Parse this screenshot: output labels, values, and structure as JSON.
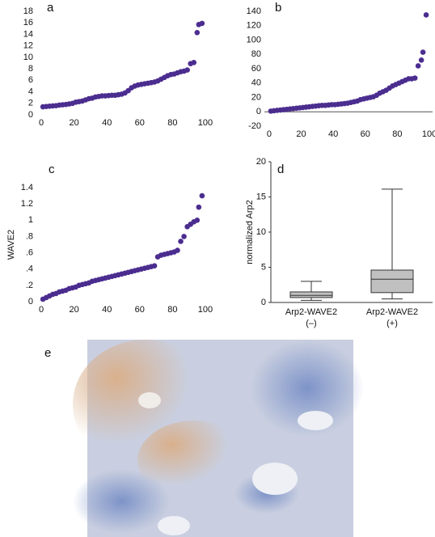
{
  "chart_data": [
    {
      "type": "scatter",
      "label": "a",
      "color": "#4b2d8f",
      "xlim": [
        -3,
        102
      ],
      "xticks": [
        0,
        20,
        40,
        60,
        80,
        100
      ],
      "ylim": [
        0,
        18
      ],
      "yticks": [
        0,
        2,
        4,
        6,
        8,
        10,
        12,
        14,
        16,
        18
      ],
      "x": [
        1,
        3,
        5,
        7,
        9,
        11,
        13,
        15,
        17,
        19,
        21,
        23,
        25,
        27,
        29,
        31,
        33,
        35,
        37,
        39,
        41,
        43,
        45,
        47,
        49,
        51,
        53,
        55,
        57,
        59,
        61,
        63,
        65,
        67,
        69,
        71,
        73,
        75,
        77,
        79,
        81,
        83,
        85,
        87,
        89,
        91,
        93,
        95,
        96,
        98
      ],
      "values": [
        1.4,
        1.45,
        1.5,
        1.55,
        1.6,
        1.7,
        1.75,
        1.8,
        1.9,
        2.0,
        2.2,
        2.3,
        2.4,
        2.6,
        2.8,
        2.9,
        3.1,
        3.2,
        3.3,
        3.3,
        3.35,
        3.4,
        3.4,
        3.5,
        3.6,
        3.8,
        4.2,
        4.7,
        5.0,
        5.2,
        5.3,
        5.4,
        5.5,
        5.6,
        5.7,
        5.9,
        6.2,
        6.5,
        6.8,
        7.0,
        7.1,
        7.3,
        7.5,
        7.6,
        7.8,
        8.9,
        9.1,
        14.3,
        15.7,
        15.9
      ]
    },
    {
      "type": "scatter",
      "label": "b",
      "color": "#4b2d8f",
      "xlim": [
        -3,
        102
      ],
      "xticks": [
        0,
        20,
        40,
        60,
        80,
        100
      ],
      "ylim": [
        -20,
        140
      ],
      "yticks": [
        -20,
        0,
        20,
        40,
        60,
        80,
        100,
        120,
        140
      ],
      "reference_line": 0,
      "x": [
        1,
        3,
        5,
        7,
        9,
        11,
        13,
        15,
        17,
        19,
        21,
        23,
        25,
        27,
        29,
        31,
        33,
        35,
        37,
        39,
        41,
        43,
        45,
        47,
        49,
        51,
        53,
        55,
        57,
        59,
        61,
        63,
        65,
        67,
        69,
        71,
        73,
        75,
        77,
        79,
        81,
        83,
        85,
        87,
        89,
        91,
        93,
        95,
        96,
        98
      ],
      "values": [
        1,
        1.5,
        2,
        2.5,
        3,
        3.5,
        4,
        4.5,
        5,
        5.5,
        6,
        6.5,
        7,
        7.5,
        8,
        8.5,
        9,
        9,
        9.5,
        10,
        10,
        10.5,
        11,
        11.5,
        12,
        13,
        14,
        15,
        17,
        18,
        19,
        20,
        21,
        23,
        26,
        28,
        30,
        33,
        36,
        38,
        40,
        42,
        44,
        46,
        46,
        47,
        64,
        72,
        83,
        135
      ]
    },
    {
      "type": "scatter",
      "label": "c",
      "y_label": "WAVE2",
      "color": "#4b2d8f",
      "xlim": [
        -3,
        102
      ],
      "xticks": [
        0,
        20,
        40,
        60,
        80,
        100
      ],
      "ylim": [
        0,
        1.4
      ],
      "yticks": [
        0,
        {
          "value": 0.2,
          "label": ".2"
        },
        {
          "value": 0.4,
          "label": ".4"
        },
        {
          "value": 0.6,
          "label": ".6"
        },
        {
          "value": 0.8,
          "label": ".8"
        },
        1,
        1.2,
        1.4
      ],
      "x": [
        1,
        3,
        5,
        7,
        9,
        11,
        13,
        15,
        17,
        19,
        21,
        23,
        25,
        27,
        29,
        31,
        33,
        35,
        37,
        39,
        41,
        43,
        45,
        47,
        49,
        51,
        53,
        55,
        57,
        59,
        61,
        63,
        65,
        67,
        69,
        71,
        73,
        75,
        77,
        79,
        81,
        83,
        85,
        87,
        89,
        91,
        93,
        95,
        96,
        98
      ],
      "values": [
        0.03,
        0.05,
        0.07,
        0.09,
        0.1,
        0.12,
        0.13,
        0.14,
        0.16,
        0.17,
        0.18,
        0.2,
        0.21,
        0.22,
        0.23,
        0.25,
        0.26,
        0.27,
        0.28,
        0.29,
        0.3,
        0.31,
        0.32,
        0.33,
        0.34,
        0.35,
        0.36,
        0.37,
        0.38,
        0.39,
        0.4,
        0.41,
        0.42,
        0.43,
        0.44,
        0.55,
        0.57,
        0.58,
        0.59,
        0.6,
        0.61,
        0.63,
        0.74,
        0.8,
        0.92,
        0.95,
        0.98,
        1.0,
        1.16,
        1.3
      ]
    },
    {
      "type": "box",
      "label": "d",
      "y_label": "normalized Arp2",
      "color": "#c0c0c0",
      "ylim": [
        0,
        20
      ],
      "yticks": [
        0,
        5,
        10,
        15,
        20
      ],
      "categories": [
        [
          "Arp2-WAVE2",
          "(–)"
        ],
        [
          "Arp2-WAVE2",
          "(+)"
        ]
      ],
      "boxes": [
        {
          "min": 0.3,
          "q1": 0.7,
          "median": 1.0,
          "q3": 1.5,
          "max": 3.0
        },
        {
          "min": 0.5,
          "q1": 1.4,
          "median": 3.3,
          "q3": 4.6,
          "max": 16.1
        }
      ]
    }
  ],
  "image_panel": {
    "label": "e"
  }
}
